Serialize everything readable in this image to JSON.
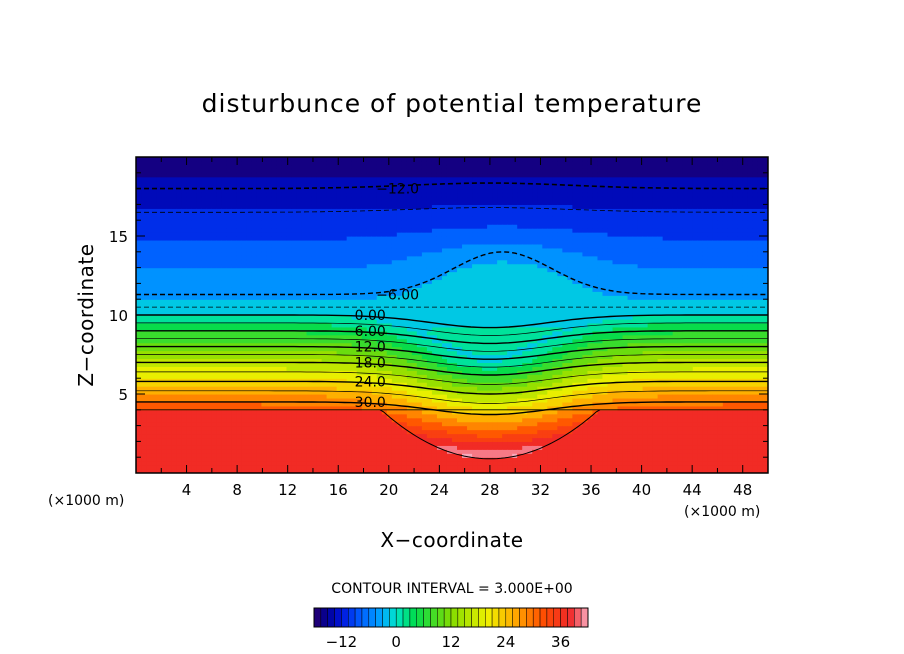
{
  "chart_data": {
    "type": "contour",
    "title": "disturbunce of potential temperature",
    "xlabel": "X−coordinate",
    "ylabel": "Z−coordinate",
    "x_unit_label_left": "(×1000 m)",
    "x_unit_label_right": "(×1000 m)",
    "xlim": [
      0,
      50
    ],
    "ylim": [
      0,
      20
    ],
    "x_ticks": [
      4,
      8,
      12,
      16,
      20,
      24,
      28,
      32,
      36,
      40,
      44,
      48
    ],
    "y_ticks": [
      5,
      10,
      15
    ],
    "contour_interval_text": "CONTOUR INTERVAL = 3.000E+00",
    "contour_interval": 3,
    "contour_labels": [
      {
        "text": "−12.0",
        "x": 19.0,
        "y": 18.0
      },
      {
        "text": "−6.00",
        "x": 19.0,
        "y": 11.3
      },
      {
        "text": "0.00",
        "x": 17.3,
        "y": 10.0
      },
      {
        "text": "6.00",
        "x": 17.3,
        "y": 9.0
      },
      {
        "text": "12.0",
        "x": 17.3,
        "y": 8.0
      },
      {
        "text": "18.0",
        "x": 17.3,
        "y": 7.0
      },
      {
        "text": "24.0",
        "x": 17.3,
        "y": 5.8
      },
      {
        "text": "30.0",
        "x": 17.3,
        "y": 4.5
      }
    ],
    "colorbar": {
      "range": [
        -18,
        42
      ],
      "ticks": [
        -12,
        0,
        12,
        24,
        36
      ],
      "tick_labels": [
        "−12",
        "0",
        "12",
        "24",
        "36"
      ]
    },
    "colormap": "rainbow (dark blue → cyan → green → yellow → orange → red)"
  }
}
